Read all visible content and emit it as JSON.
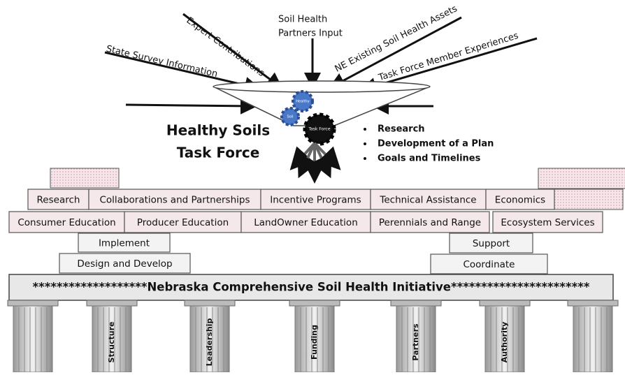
{
  "inputs": [
    "State Survey Information",
    "Expert Contributions",
    "Soil Health",
    "Partners Input",
    "NE Existing Soil Health Assets",
    "Task Force Member Experiences"
  ],
  "gears": [
    "Healthy",
    "Soil",
    "Task Force"
  ],
  "title": [
    "Healthy Soils",
    "Task Force"
  ],
  "outputs": [
    "Research",
    "Development of a Plan",
    "Goals and Timelines"
  ],
  "bricks": {
    "row1": [
      "Research",
      "Collaborations and Partnerships",
      "Incentive  Programs",
      "Technical Assistance",
      "Economics"
    ],
    "row2": [
      "Consumer Education",
      "Producer Education",
      "LandOwner Education",
      "Perennials and Range",
      "Ecosystem Services"
    ]
  },
  "steps": {
    "left": [
      "Implement",
      "Design and Develop"
    ],
    "right": [
      "Support",
      "Coordinate"
    ]
  },
  "banner": "*******************Nebraska Comprehensive Soil Health Initiative***********************",
  "pillars": [
    "Structure",
    "Leadership",
    "Funding",
    "Partners",
    "Authority"
  ]
}
